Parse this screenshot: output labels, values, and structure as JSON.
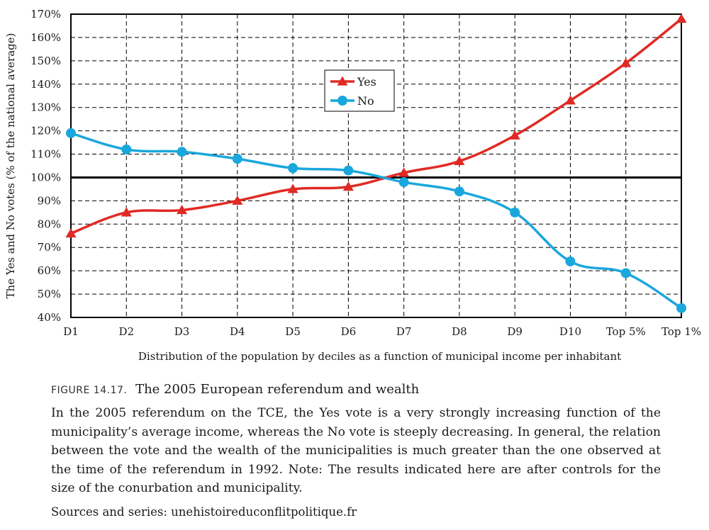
{
  "chart_data": {
    "type": "line",
    "categories": [
      "D1",
      "D2",
      "D3",
      "D4",
      "D5",
      "D6",
      "D7",
      "D8",
      "D9",
      "D10",
      "Top 5%",
      "Top 1%"
    ],
    "series": [
      {
        "name": "Yes",
        "color": "#e02a24",
        "marker": "triangle",
        "values": [
          76,
          85,
          86,
          90,
          95,
          96,
          102,
          107,
          118,
          133,
          149,
          168
        ]
      },
      {
        "name": "No",
        "color": "#1aa7dc",
        "marker": "circle",
        "values": [
          119,
          112,
          111,
          108,
          104,
          103,
          98,
          94,
          85,
          64,
          59,
          44
        ]
      }
    ],
    "ylim": [
      40,
      170
    ],
    "yticks": [
      40,
      50,
      60,
      70,
      80,
      90,
      100,
      110,
      120,
      130,
      140,
      150,
      160,
      170
    ],
    "ytick_labels": [
      "40%",
      "50%",
      "60%",
      "70%",
      "80%",
      "90%",
      "100%",
      "110%",
      "120%",
      "130%",
      "140%",
      "150%",
      "160%",
      "170%"
    ],
    "reference_line": 100,
    "grid": true,
    "legend_position": "top-center",
    "xlabel": "Distribution of the population by deciles as a function of municipal income per inhabitant",
    "ylabel": "The Yes and No votes (% of the national average)"
  },
  "caption": {
    "figure_label": "FIGURE 14.17.",
    "figure_title": "The 2005 European referendum and wealth",
    "body": "In the 2005 referendum on the TCE, the Yes vote is a very strongly increasing function of the municipality’s average income, whereas the No vote is steeply decreasing. In general, the relation between the vote and the wealth of the municipalities is much greater than the one observed at the time of the referendum in 1992. Note: The results indicated here are after controls for the size of the conurbation and municipality.",
    "sources": "Sources and series: unehistoireduconflitpolitique.fr"
  }
}
